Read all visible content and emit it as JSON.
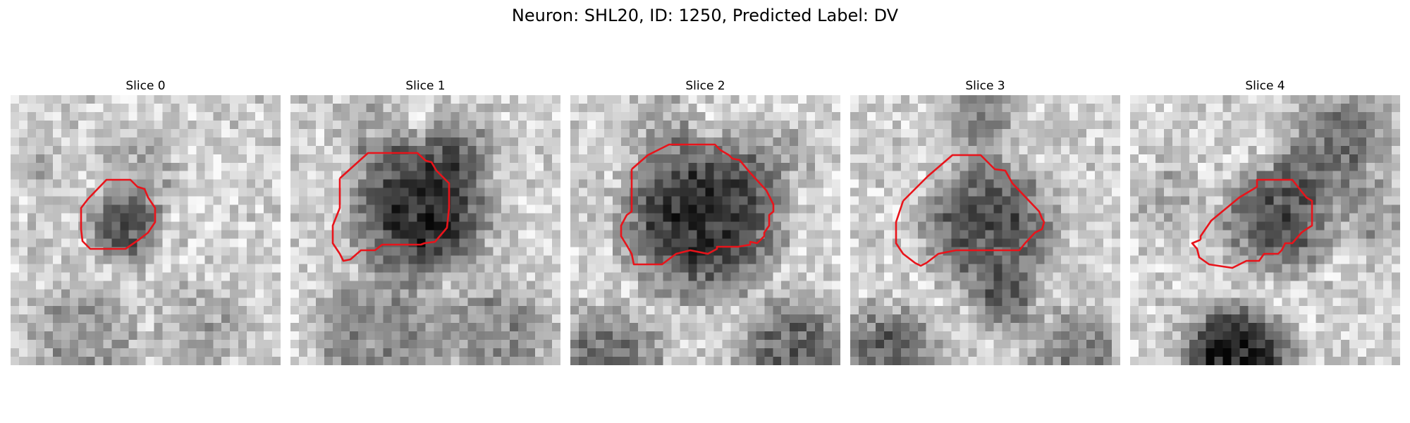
{
  "figure": {
    "title": "Neuron: SHL20, ID: 1250, Predicted Label: DV"
  },
  "slices": [
    {
      "title": "Slice 0",
      "darkness": "small",
      "contour_color": "#e8141b"
    },
    {
      "title": "Slice 1",
      "darkness": "large",
      "contour_color": "#e8141b"
    },
    {
      "title": "Slice 2",
      "darkness": "large",
      "contour_color": "#e8141b"
    },
    {
      "title": "Slice 3",
      "darkness": "medium",
      "contour_color": "#e8141b"
    },
    {
      "title": "Slice 4",
      "darkness": "medium",
      "contour_color": "#e8141b"
    }
  ],
  "colors": {
    "contour": "#e8141b"
  }
}
